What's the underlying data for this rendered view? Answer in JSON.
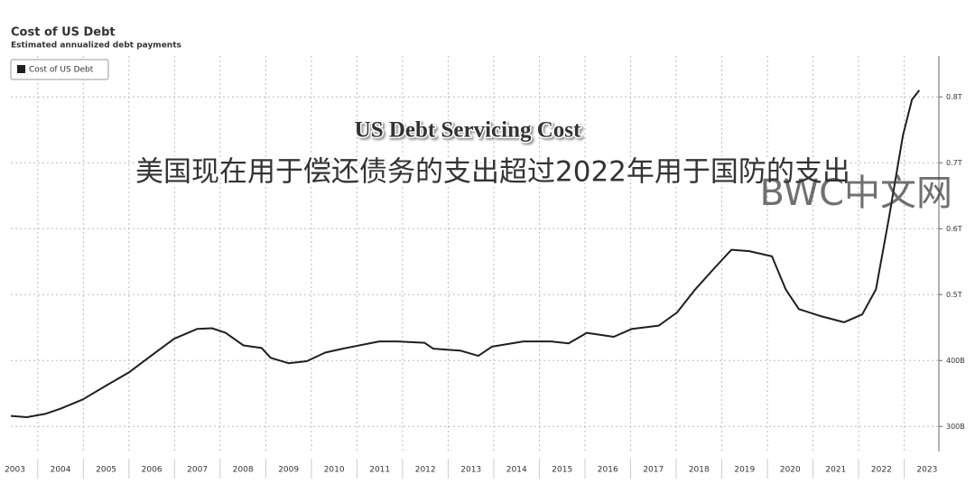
{
  "chart_data": {
    "type": "line",
    "title": "Cost of US Debt",
    "subtitle": "Estimated annualized debt payments",
    "annotations": [
      "US Debt Servicing Cost",
      "美国现在用于偿还债务的支出超过2022年用于国防的支出",
      "BWC中文网"
    ],
    "x": [
      2003.41,
      2003.76,
      2004.16,
      2004.5,
      2004.99,
      2005.5,
      2006.0,
      2006.5,
      2006.99,
      2007.5,
      2007.82,
      2008.12,
      2008.51,
      2008.91,
      2009.11,
      2009.5,
      2009.9,
      2010.3,
      2010.69,
      2011.49,
      2011.88,
      2012.48,
      2012.67,
      2013.27,
      2013.66,
      2013.96,
      2014.65,
      2015.25,
      2015.64,
      2016.04,
      2016.63,
      2017.03,
      2017.62,
      2018.02,
      2018.42,
      2018.81,
      2019.21,
      2019.6,
      2020.1,
      2020.4,
      2020.69,
      2021.19,
      2021.68,
      2022.08,
      2022.38,
      2022.67,
      2022.97,
      2023.17,
      2023.33
    ],
    "series": [
      {
        "name": "Cost of US Debt",
        "color": "#1f1f1f",
        "values": [
          316,
          314,
          319,
          327,
          341,
          362,
          382,
          408,
          433,
          448,
          449,
          442,
          423,
          419,
          404,
          396,
          399,
          412,
          418,
          429,
          429,
          427,
          418,
          415,
          407,
          421,
          429,
          429,
          426,
          442,
          436,
          448,
          453,
          473,
          508,
          538,
          568,
          566,
          558,
          508,
          478,
          467,
          458,
          470,
          508,
          618,
          741,
          796,
          810
        ]
      }
    ],
    "xlim": [
      2003.41,
      2023.76
    ],
    "xticks": [
      {
        "value": 2003,
        "label": "2003"
      },
      {
        "value": 2004,
        "label": "2004"
      },
      {
        "value": 2005,
        "label": "2005"
      },
      {
        "value": 2006,
        "label": "2006"
      },
      {
        "value": 2007,
        "label": "2007"
      },
      {
        "value": 2008,
        "label": "2008"
      },
      {
        "value": 2009,
        "label": "2009"
      },
      {
        "value": 2010,
        "label": "2010"
      },
      {
        "value": 2011,
        "label": "2011"
      },
      {
        "value": 2012,
        "label": "2012"
      },
      {
        "value": 2013,
        "label": "2013"
      },
      {
        "value": 2014,
        "label": "2014"
      },
      {
        "value": 2015,
        "label": "2015"
      },
      {
        "value": 2016,
        "label": "2016"
      },
      {
        "value": 2017,
        "label": "2017"
      },
      {
        "value": 2018,
        "label": "2018"
      },
      {
        "value": 2019,
        "label": "2019"
      },
      {
        "value": 2020,
        "label": "2020"
      },
      {
        "value": 2021,
        "label": "2021"
      },
      {
        "value": 2022,
        "label": "2022"
      },
      {
        "value": 2023,
        "label": "2023"
      }
    ],
    "ylim": [
      262,
      862
    ],
    "yticks": [
      {
        "value": 300,
        "label": "300B"
      },
      {
        "value": 400,
        "label": "400B"
      },
      {
        "value": 500,
        "label": "0.5T"
      },
      {
        "value": 600,
        "label": "0.6T"
      },
      {
        "value": 700,
        "label": "0.7T"
      },
      {
        "value": 800,
        "label": "0.8T"
      }
    ],
    "grid": true,
    "legend": "top-left"
  }
}
